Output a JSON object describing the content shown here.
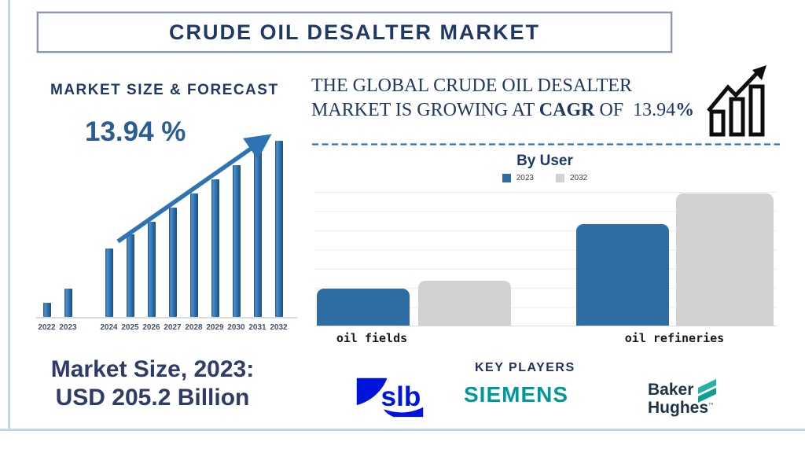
{
  "title": "CRUDE OIL DESALTER MARKET",
  "forecast": {
    "heading": "MARKET SIZE & FORECAST",
    "cagr_label": "13.94 %",
    "market_size_line1": "Market Size, 2023:",
    "market_size_line2": "USD 205.2 Billion"
  },
  "growth_note": {
    "line1": "THE GLOBAL CRUDE OIL DESALTER",
    "line2_pre": "MARKET IS GROWING AT ",
    "cagr_word": "CAGR",
    "of_word": " OF  ",
    "cagr_value": "13.94",
    "percent": "%"
  },
  "by_user": {
    "title": "By User"
  },
  "key_players": {
    "heading": "KEY PLAYERS",
    "slb": "slb",
    "siemens": "SIEMENS",
    "baker_line1": "Baker",
    "baker_line2": "Hughes",
    "baker_tm": "™"
  },
  "icons": {
    "growth": "rising-bar-chart-with-arrow-icon",
    "forecast_trend": "upward-trend-arrow",
    "baker_mark": "teal-double-chevron-icon"
  },
  "colors": {
    "navy": "#1F3864",
    "chart_blue": "#2E74B5",
    "bar_edge": "#1F4E79",
    "byuser_blue": "#2E6DA4",
    "byuser_gray": "#D2D2D2",
    "frame_blue": "#BDD7EE",
    "title_border": "#8796B2",
    "slb_blue": "#0014DC",
    "siemens_teal": "#009898",
    "baker_navy": "#1B3247",
    "baker_teal": "#00AE9C"
  },
  "chart_data": [
    {
      "type": "bar",
      "title": "MARKET SIZE & FORECAST",
      "categories": [
        "2022",
        "2023",
        "2024",
        "2025",
        "2026",
        "2027",
        "2028",
        "2029",
        "2030",
        "2031",
        "2032"
      ],
      "values": [
        8,
        16,
        39,
        47,
        54,
        62,
        70,
        78,
        86,
        94,
        100
      ],
      "ylim": [
        0,
        100
      ],
      "annotation": "13.94 %",
      "trend_arrow": true,
      "gap_after_category": "2023",
      "grid": false,
      "legend": false
    },
    {
      "type": "bar",
      "title": "By User",
      "categories": [
        "oil fields",
        "oil refineries"
      ],
      "series": [
        {
          "name": "2023",
          "color": "#2E6DA4",
          "values": [
            28,
            77
          ]
        },
        {
          "name": "2032",
          "color": "#D2D2D2",
          "values": [
            34,
            100
          ]
        }
      ],
      "ylim": [
        0,
        100
      ],
      "grid": true,
      "legend_position": "top"
    }
  ]
}
